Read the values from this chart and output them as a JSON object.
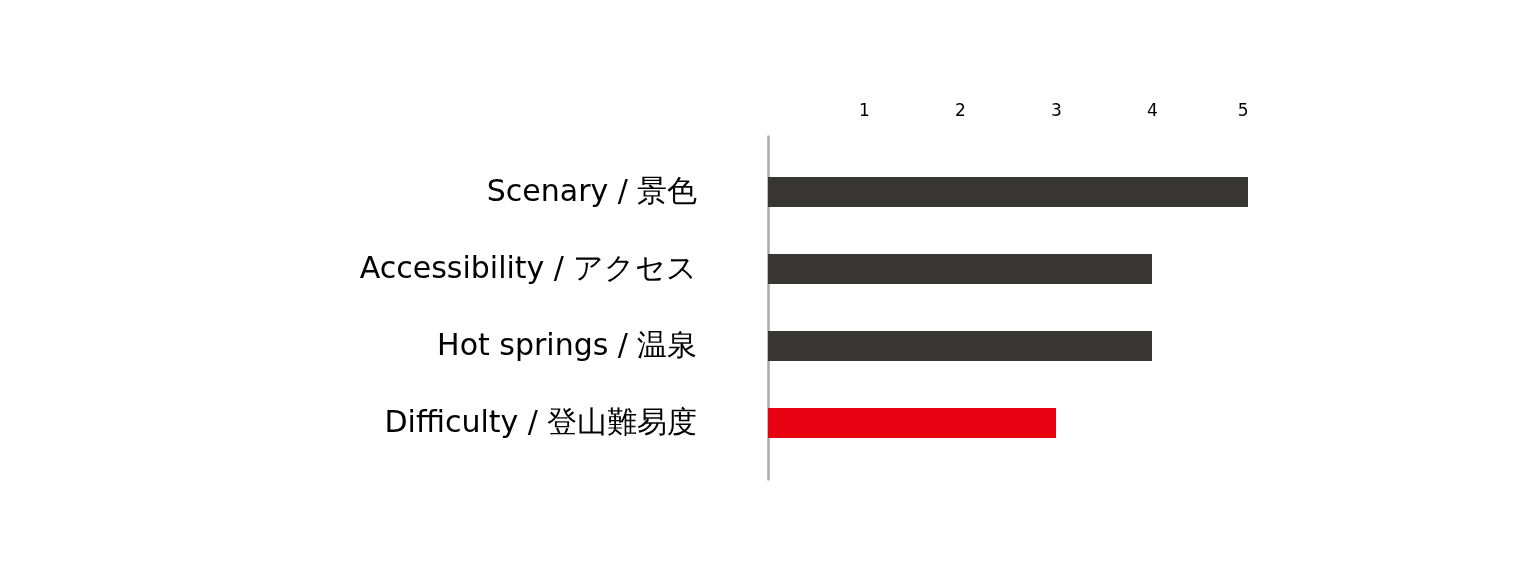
{
  "chart_data": {
    "type": "bar",
    "orientation": "horizontal",
    "categories": [
      "Scenary / 景色",
      "Accessibility / アクセス",
      "Hot springs / 温泉",
      "Difficulty / 登山難易度"
    ],
    "values": [
      5,
      4,
      4,
      3
    ],
    "colors": [
      "#383634",
      "#383634",
      "#383634",
      "#e60012"
    ],
    "xlim": [
      0,
      5
    ],
    "xticks": [
      1,
      2,
      3,
      4,
      5
    ]
  }
}
